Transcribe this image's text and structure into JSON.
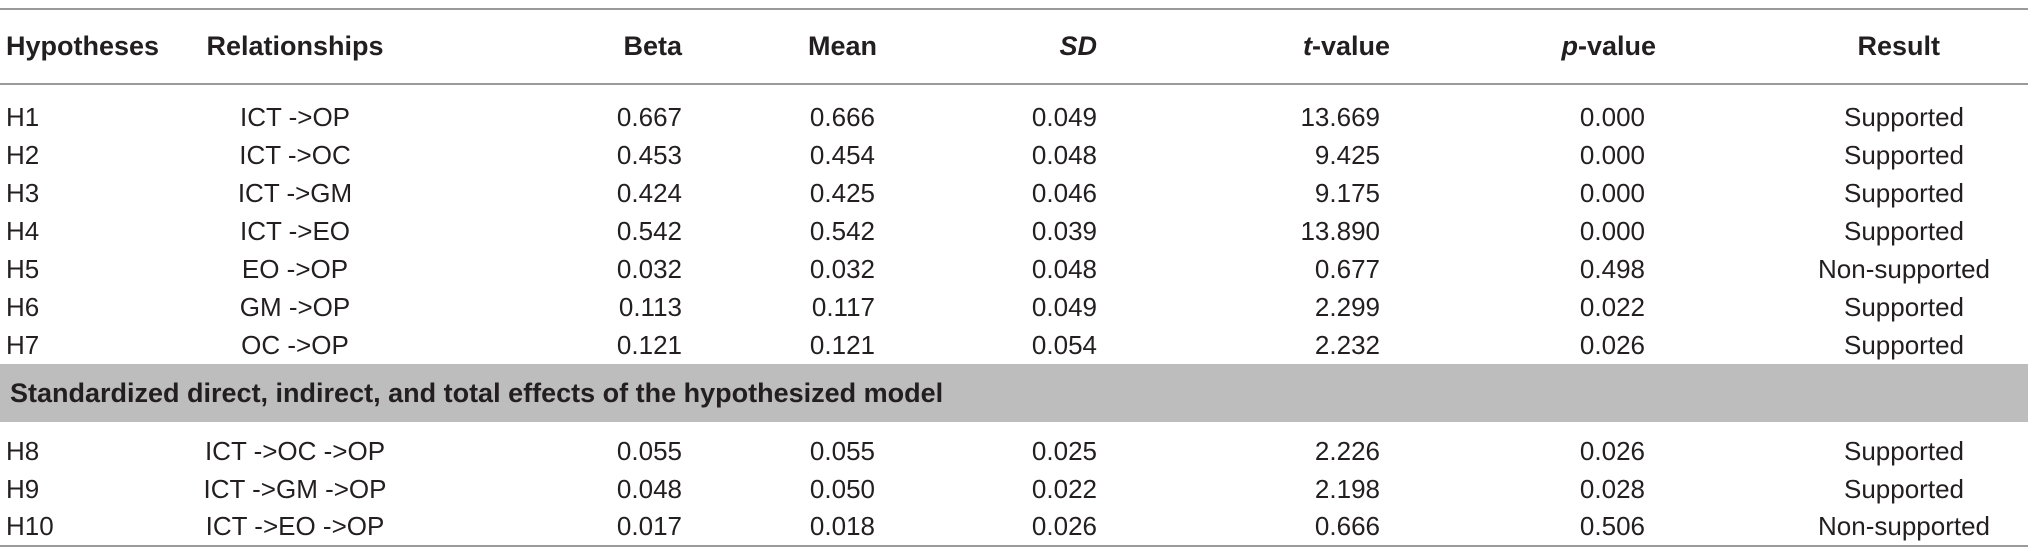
{
  "headers": {
    "hypotheses": "Hypotheses",
    "relationships": "Relationships",
    "beta": "Beta",
    "mean": "Mean",
    "sd": "SD",
    "t_prefix": "t",
    "t_suffix": "-value",
    "p_prefix": "p",
    "p_suffix": "-value",
    "result": "Result"
  },
  "rows_direct": [
    {
      "h": "H1",
      "rel": "ICT ->OP",
      "beta": "0.667",
      "mean": "0.666",
      "sd": "0.049",
      "t": "13.669",
      "p": "0.000",
      "result": "Supported"
    },
    {
      "h": "H2",
      "rel": "ICT ->OC",
      "beta": "0.453",
      "mean": "0.454",
      "sd": "0.048",
      "t": "9.425",
      "p": "0.000",
      "result": "Supported"
    },
    {
      "h": "H3",
      "rel": "ICT ->GM",
      "beta": "0.424",
      "mean": "0.425",
      "sd": "0.046",
      "t": "9.175",
      "p": "0.000",
      "result": "Supported"
    },
    {
      "h": "H4",
      "rel": "ICT ->EO",
      "beta": "0.542",
      "mean": "0.542",
      "sd": "0.039",
      "t": "13.890",
      "p": "0.000",
      "result": "Supported"
    },
    {
      "h": "H5",
      "rel": "EO ->OP",
      "beta": "0.032",
      "mean": "0.032",
      "sd": "0.048",
      "t": "0.677",
      "p": "0.498",
      "result": "Non-supported"
    },
    {
      "h": "H6",
      "rel": "GM ->OP",
      "beta": "0.113",
      "mean": "0.117",
      "sd": "0.049",
      "t": "2.299",
      "p": "0.022",
      "result": "Supported"
    },
    {
      "h": "H7",
      "rel": "OC ->OP",
      "beta": "0.121",
      "mean": "0.121",
      "sd": "0.054",
      "t": "2.232",
      "p": "0.026",
      "result": "Supported"
    }
  ],
  "section_title": "Standardized direct, indirect, and total effects of the hypothesized model",
  "rows_indirect": [
    {
      "h": "H8",
      "rel": "ICT ->OC ->OP",
      "beta": "0.055",
      "mean": "0.055",
      "sd": "0.025",
      "t": "2.226",
      "p": "0.026",
      "result": "Supported"
    },
    {
      "h": "H9",
      "rel": "ICT ->GM ->OP",
      "beta": "0.048",
      "mean": "0.050",
      "sd": "0.022",
      "t": "2.198",
      "p": "0.028",
      "result": "Supported"
    },
    {
      "h": "H10",
      "rel": "ICT ->EO ->OP",
      "beta": "0.017",
      "mean": "0.018",
      "sd": "0.026",
      "t": "0.666",
      "p": "0.506",
      "result": "Non-supported"
    }
  ]
}
